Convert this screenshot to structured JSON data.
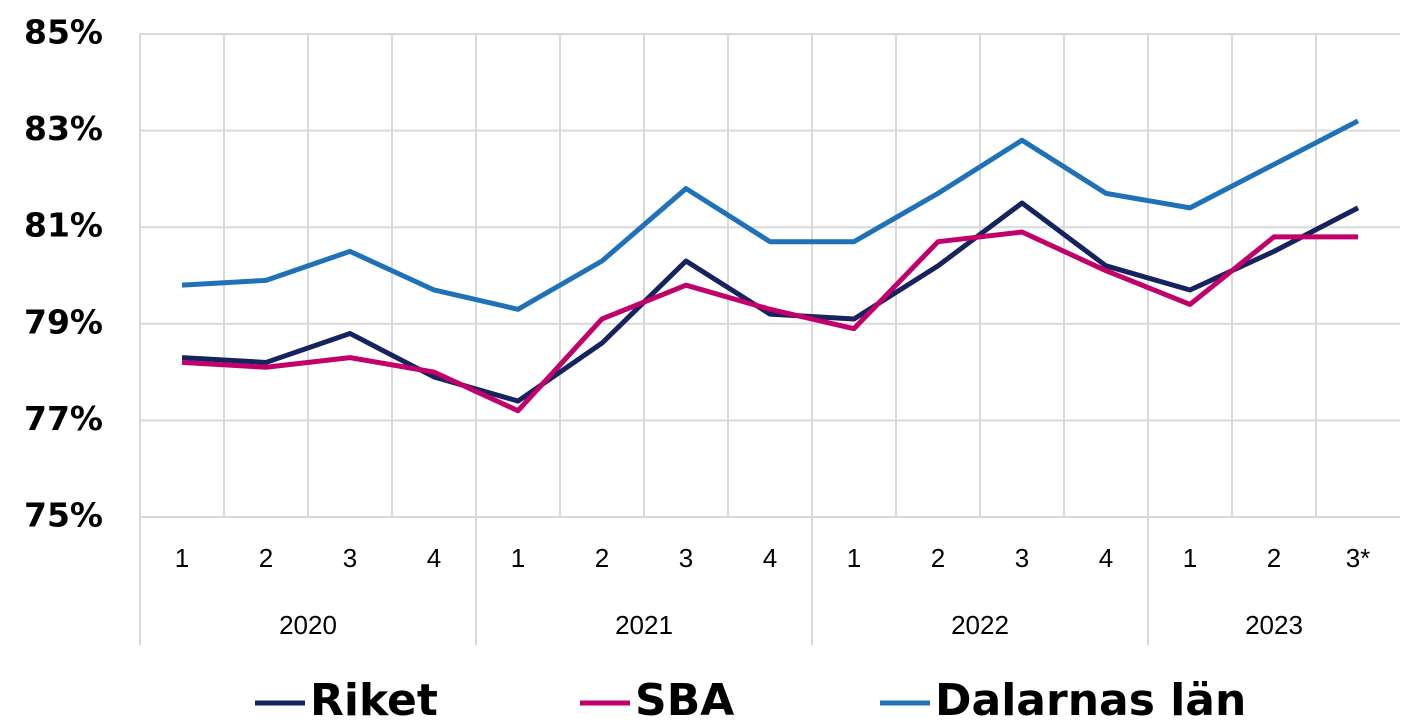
{
  "chart_data": {
    "type": "line",
    "groups": [
      {
        "name": "2020",
        "categories": [
          "1",
          "2",
          "3",
          "4"
        ]
      },
      {
        "name": "2021",
        "categories": [
          "1",
          "2",
          "3",
          "4"
        ]
      },
      {
        "name": "2022",
        "categories": [
          "1",
          "2",
          "3",
          "4"
        ]
      },
      {
        "name": "2023",
        "categories": [
          "1",
          "2",
          "3*"
        ]
      }
    ],
    "series": [
      {
        "name": "Riket",
        "color": "#15235e",
        "values": [
          78.3,
          78.2,
          78.8,
          77.9,
          77.4,
          78.6,
          80.3,
          79.2,
          79.1,
          80.2,
          81.5,
          80.2,
          79.7,
          80.5,
          81.4
        ]
      },
      {
        "name": "SBA",
        "color": "#c2006b",
        "values": [
          78.2,
          78.1,
          78.3,
          78.0,
          77.2,
          79.1,
          79.8,
          79.3,
          78.9,
          80.7,
          80.9,
          80.1,
          79.4,
          80.8,
          80.8
        ]
      },
      {
        "name": "Dalarnas län",
        "color": "#1f72b8",
        "values": [
          79.8,
          79.9,
          80.5,
          79.7,
          79.3,
          80.3,
          81.8,
          80.7,
          80.7,
          81.7,
          82.8,
          81.7,
          81.4,
          82.3,
          83.2
        ]
      }
    ],
    "ylim": [
      75,
      85
    ],
    "yticks": [
      {
        "value": 75,
        "label": "75%"
      },
      {
        "value": 77,
        "label": "77%"
      },
      {
        "value": 79,
        "label": "79%"
      },
      {
        "value": 81,
        "label": "81%"
      },
      {
        "value": 83,
        "label": "83%"
      },
      {
        "value": 85,
        "label": "85%"
      }
    ],
    "grid": true,
    "legend": "bottom"
  }
}
